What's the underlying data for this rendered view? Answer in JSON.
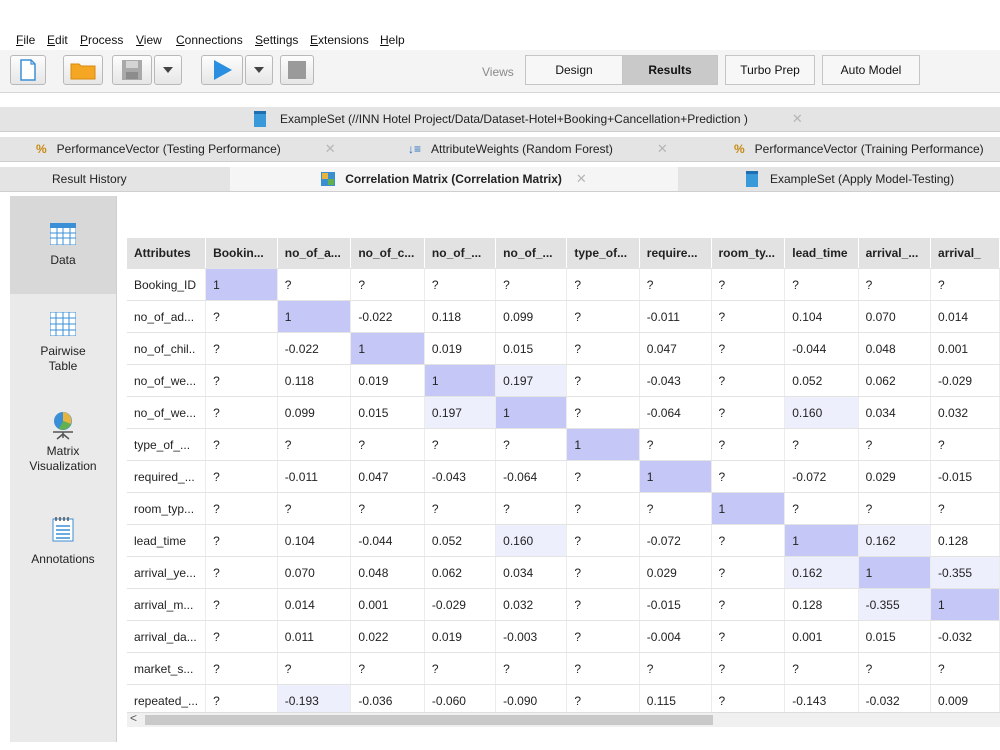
{
  "menu": {
    "file": "File",
    "edit": "Edit",
    "process": "Process",
    "view": "View",
    "connections": "Connections",
    "settings": "Settings",
    "extensions": "Extensions",
    "help": "Help"
  },
  "toolbar": {
    "views_label": "Views",
    "design": "Design",
    "results": "Results",
    "turbo_prep": "Turbo Prep",
    "auto_model": "Auto Model"
  },
  "tabs_row1": {
    "exampleset": "ExampleSet (//INN Hotel Project/Data/Dataset-Hotel+Booking+Cancellation+Prediction )"
  },
  "tabs_row2": {
    "perf_testing": "PerformanceVector (Testing Performance)",
    "attr_weights": "AttributeWeights (Random Forest)",
    "perf_training": "PerformanceVector (Training Performance)"
  },
  "tabs_row3": {
    "result_history": "Result History",
    "correlation": "Correlation Matrix (Correlation Matrix)",
    "apply_model": "ExampleSet (Apply Model-Testing)"
  },
  "sidebar": {
    "data": "Data",
    "pairwise": "Pairwise\nTable",
    "matrix": "Matrix\nVisualization",
    "annotations": "Annotations"
  },
  "table": {
    "headers": [
      "Attributes",
      "Bookin...",
      "no_of_a...",
      "no_of_c...",
      "no_of_...",
      "no_of_...",
      "type_of...",
      "require...",
      "room_ty...",
      "lead_time",
      "arrival_...",
      "arrival_"
    ],
    "rows": [
      [
        "Booking_ID",
        "1",
        "?",
        "?",
        "?",
        "?",
        "?",
        "?",
        "?",
        "?",
        "?",
        "?"
      ],
      [
        "no_of_ad...",
        "?",
        "1",
        "-0.022",
        "0.118",
        "0.099",
        "?",
        "-0.011",
        "?",
        "0.104",
        "0.070",
        "0.014"
      ],
      [
        "no_of_chil..",
        "?",
        "-0.022",
        "1",
        "0.019",
        "0.015",
        "?",
        "0.047",
        "?",
        "-0.044",
        "0.048",
        "0.001"
      ],
      [
        "no_of_we...",
        "?",
        "0.118",
        "0.019",
        "1",
        "0.197",
        "?",
        "-0.043",
        "?",
        "0.052",
        "0.062",
        "-0.029"
      ],
      [
        "no_of_we...",
        "?",
        "0.099",
        "0.015",
        "0.197",
        "1",
        "?",
        "-0.064",
        "?",
        "0.160",
        "0.034",
        "0.032"
      ],
      [
        "type_of_...",
        "?",
        "?",
        "?",
        "?",
        "?",
        "1",
        "?",
        "?",
        "?",
        "?",
        "?"
      ],
      [
        "required_...",
        "?",
        "-0.011",
        "0.047",
        "-0.043",
        "-0.064",
        "?",
        "1",
        "?",
        "-0.072",
        "0.029",
        "-0.015"
      ],
      [
        "room_typ...",
        "?",
        "?",
        "?",
        "?",
        "?",
        "?",
        "?",
        "1",
        "?",
        "?",
        "?"
      ],
      [
        "lead_time",
        "?",
        "0.104",
        "-0.044",
        "0.052",
        "0.160",
        "?",
        "-0.072",
        "?",
        "1",
        "0.162",
        "0.128"
      ],
      [
        "arrival_ye...",
        "?",
        "0.070",
        "0.048",
        "0.062",
        "0.034",
        "?",
        "0.029",
        "?",
        "0.162",
        "1",
        "-0.355"
      ],
      [
        "arrival_m...",
        "?",
        "0.014",
        "0.001",
        "-0.029",
        "0.032",
        "?",
        "-0.015",
        "?",
        "0.128",
        "-0.355",
        "1"
      ],
      [
        "arrival_da...",
        "?",
        "0.011",
        "0.022",
        "0.019",
        "-0.003",
        "?",
        "-0.004",
        "?",
        "0.001",
        "0.015",
        "-0.032"
      ],
      [
        "market_s...",
        "?",
        "?",
        "?",
        "?",
        "?",
        "?",
        "?",
        "?",
        "?",
        "?",
        "?"
      ],
      [
        "repeated_...",
        "?",
        "-0.193",
        "-0.036",
        "-0.060",
        "-0.090",
        "?",
        "0.115",
        "?",
        "-0.143",
        "-0.032",
        "0.009"
      ]
    ]
  }
}
